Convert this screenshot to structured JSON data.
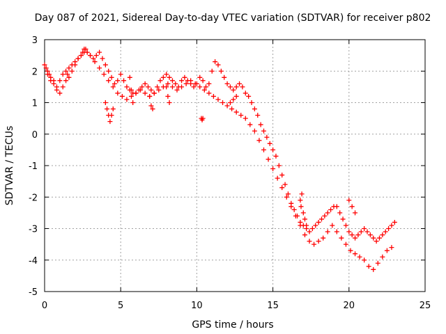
{
  "chart_data": {
    "type": "scatter",
    "title": "Day 087 of 2021, Sidereal Day-to-day VTEC variation (SDTVAR) for receiver p802",
    "xlabel": "GPS time / hours",
    "ylabel": "SDTVAR / TECUs",
    "xlim": [
      0,
      25
    ],
    "ylim": [
      -5,
      3
    ],
    "xticks": [
      0,
      5,
      10,
      15,
      20,
      25
    ],
    "yticks": [
      -5,
      -4,
      -3,
      -2,
      -1,
      0,
      1,
      2,
      3
    ],
    "grid": true,
    "marker": "plus",
    "series_color": "#ff0000",
    "series": [
      {
        "name": "p802",
        "x": [
          0.0,
          0.1,
          0.2,
          0.3,
          0.4,
          0.6,
          0.8,
          1.0,
          1.2,
          1.4,
          1.5,
          1.6,
          1.8,
          2.0,
          2.2,
          2.4,
          2.5,
          2.6,
          2.7,
          2.8,
          3.0,
          3.2,
          3.4,
          3.6,
          3.8,
          4.0,
          4.2,
          4.4,
          4.6,
          4.8,
          5.0,
          5.2,
          5.4,
          5.6,
          5.8,
          6.0,
          6.2,
          6.4,
          6.6,
          6.8,
          7.0,
          7.2,
          7.4,
          7.6,
          7.8,
          8.0,
          8.2,
          8.4,
          8.6,
          8.8,
          9.0,
          9.2,
          9.4,
          9.6,
          9.8,
          10.0,
          10.2,
          10.4,
          10.6,
          10.8,
          11.0,
          11.2,
          11.4,
          11.6,
          11.8,
          12.0,
          12.2,
          12.4,
          12.6,
          12.8,
          13.0,
          13.2,
          13.4,
          13.6,
          13.8,
          14.0,
          14.2,
          14.4,
          14.6,
          14.8,
          15.0,
          15.2,
          15.4,
          15.6,
          15.8,
          16.0,
          16.2,
          16.4,
          16.6,
          16.8,
          17.0,
          17.2,
          17.4,
          17.6,
          17.8,
          18.0,
          18.2,
          18.4,
          18.6,
          18.8,
          19.0,
          19.2,
          19.4,
          19.6,
          19.8,
          20.0,
          20.2,
          20.4,
          20.6,
          20.8,
          21.0,
          21.2,
          21.4,
          21.6,
          21.8,
          22.0,
          22.2,
          22.4,
          22.6,
          22.8,
          23.0,
          0.2,
          0.4,
          0.6,
          0.8,
          1.0,
          1.2,
          1.4,
          1.6,
          1.8,
          2.0,
          2.2,
          2.4,
          2.6,
          2.8,
          3.0,
          3.3,
          3.6,
          3.9,
          4.2,
          4.5,
          4.8,
          5.1,
          5.4,
          5.7,
          6.0,
          6.3,
          6.6,
          6.9,
          7.2,
          7.5,
          7.8,
          8.1,
          8.4,
          8.7,
          9.0,
          9.3,
          9.6,
          9.9,
          10.2,
          10.5,
          10.8,
          11.1,
          11.4,
          11.7,
          12.0,
          12.3,
          12.6,
          12.9,
          13.2,
          13.5,
          13.8,
          14.1,
          14.4,
          14.7,
          15.0,
          15.3,
          15.6,
          15.9,
          16.2,
          16.5,
          16.8,
          17.1,
          17.4,
          17.7,
          18.0,
          18.3,
          18.6,
          18.9,
          19.2,
          19.5,
          19.8,
          20.1,
          20.4,
          20.7,
          21.0,
          21.3,
          21.6,
          21.9,
          22.2,
          22.5,
          22.8,
          4.0,
          4.1,
          4.2,
          4.3,
          4.4,
          4.5,
          5.6,
          5.7,
          5.8,
          6.9,
          7.0,
          7.1,
          8.0,
          8.1,
          8.2,
          10.3,
          10.35,
          10.4,
          12.2,
          12.4,
          12.6,
          16.8,
          16.85,
          16.9,
          17.0,
          17.1,
          17.2,
          20.0,
          20.2,
          20.4
        ],
        "y": [
          2.2,
          2.1,
          2.0,
          1.9,
          1.7,
          1.6,
          1.4,
          1.3,
          1.5,
          1.7,
          1.9,
          1.8,
          2.0,
          2.2,
          2.4,
          2.5,
          2.6,
          2.7,
          2.7,
          2.6,
          2.5,
          2.4,
          2.5,
          2.6,
          2.4,
          2.2,
          2.0,
          1.8,
          1.6,
          1.7,
          1.9,
          1.7,
          1.5,
          1.4,
          1.3,
          1.3,
          1.4,
          1.5,
          1.6,
          1.5,
          1.4,
          1.3,
          1.5,
          1.7,
          1.8,
          1.9,
          1.8,
          1.7,
          1.6,
          1.5,
          1.7,
          1.8,
          1.7,
          1.6,
          1.5,
          1.6,
          1.8,
          1.7,
          1.5,
          1.6,
          2.0,
          2.3,
          2.2,
          2.0,
          1.8,
          1.6,
          1.5,
          1.4,
          1.5,
          1.6,
          1.5,
          1.3,
          1.2,
          1.0,
          0.8,
          0.6,
          0.3,
          0.1,
          -0.1,
          -0.3,
          -0.5,
          -0.7,
          -1.0,
          -1.3,
          -1.6,
          -1.9,
          -2.2,
          -2.4,
          -2.6,
          -2.8,
          -2.9,
          -3.0,
          -3.1,
          -3.0,
          -2.9,
          -2.8,
          -2.7,
          -2.6,
          -2.5,
          -2.4,
          -2.3,
          -2.3,
          -2.5,
          -2.7,
          -2.9,
          -3.1,
          -3.2,
          -3.3,
          -3.2,
          -3.1,
          -3.0,
          -3.1,
          -3.2,
          -3.3,
          -3.4,
          -3.3,
          -3.2,
          -3.1,
          -3.0,
          -2.9,
          -2.8,
          1.9,
          1.8,
          1.7,
          1.5,
          1.7,
          1.9,
          2.0,
          2.1,
          2.2,
          2.3,
          2.4,
          2.5,
          2.6,
          2.6,
          2.5,
          2.3,
          2.1,
          1.9,
          1.7,
          1.5,
          1.3,
          1.2,
          1.1,
          1.2,
          1.3,
          1.4,
          1.3,
          1.2,
          1.3,
          1.4,
          1.5,
          1.6,
          1.5,
          1.4,
          1.5,
          1.6,
          1.7,
          1.6,
          1.5,
          1.4,
          1.3,
          1.2,
          1.1,
          1.0,
          0.9,
          0.8,
          0.7,
          0.6,
          0.5,
          0.3,
          0.1,
          -0.2,
          -0.5,
          -0.8,
          -1.1,
          -1.4,
          -1.7,
          -2.0,
          -2.3,
          -2.6,
          -2.9,
          -3.2,
          -3.4,
          -3.5,
          -3.4,
          -3.3,
          -3.1,
          -2.9,
          -3.1,
          -3.3,
          -3.5,
          -3.7,
          -3.8,
          -3.9,
          -4.0,
          -4.2,
          -4.3,
          -4.1,
          -3.9,
          -3.7,
          -3.6,
          1.0,
          0.8,
          0.6,
          0.4,
          0.6,
          0.8,
          1.8,
          1.4,
          1.0,
          1.2,
          0.9,
          0.8,
          1.5,
          1.2,
          1.0,
          0.5,
          0.45,
          0.5,
          1.0,
          1.1,
          1.2,
          -2.1,
          -2.3,
          -1.9,
          -2.5,
          -2.7,
          -2.9,
          -2.1,
          -2.3,
          -2.5
        ]
      }
    ]
  }
}
